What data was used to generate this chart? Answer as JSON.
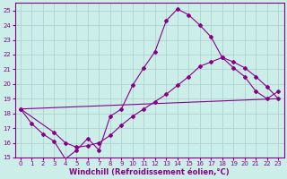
{
  "xlabel": "Windchill (Refroidissement éolien,°C)",
  "background_color": "#cceee8",
  "grid_color": "#aacccc",
  "line_color": "#880088",
  "spine_color": "#880088",
  "ylim": [
    15,
    25.5
  ],
  "xlim": [
    -0.5,
    23.5
  ],
  "yticks": [
    15,
    16,
    17,
    18,
    19,
    20,
    21,
    22,
    23,
    24,
    25
  ],
  "xticks": [
    0,
    1,
    2,
    3,
    4,
    5,
    6,
    7,
    8,
    9,
    10,
    11,
    12,
    13,
    14,
    15,
    16,
    17,
    18,
    19,
    20,
    21,
    22,
    23
  ],
  "line1_x": [
    0,
    1,
    2,
    3,
    4,
    5,
    6,
    7,
    8,
    9,
    10,
    11,
    12,
    13,
    14,
    15,
    16,
    17,
    18,
    19,
    20,
    21,
    22,
    23
  ],
  "line1_y": [
    18.3,
    17.3,
    16.6,
    16.1,
    14.9,
    15.5,
    16.3,
    15.5,
    17.8,
    18.3,
    19.9,
    21.1,
    22.2,
    24.3,
    25.1,
    24.7,
    24.0,
    23.2,
    21.8,
    21.1,
    20.5,
    19.5,
    19.0,
    19.5
  ],
  "line2_x": [
    0,
    23
  ],
  "line2_y": [
    18.3,
    19.0
  ],
  "line3_x": [
    0,
    3,
    4,
    5,
    6,
    7,
    8,
    9,
    10,
    11,
    12,
    13,
    14,
    15,
    16,
    17,
    18,
    19,
    20,
    21,
    22,
    23
  ],
  "line3_y": [
    18.3,
    16.7,
    16.0,
    15.7,
    15.8,
    16.0,
    16.5,
    17.2,
    17.8,
    18.3,
    18.8,
    19.3,
    19.9,
    20.5,
    21.2,
    21.5,
    21.8,
    21.5,
    21.1,
    20.5,
    19.8,
    19.0
  ],
  "tick_labelsize": 5,
  "xlabel_fontsize": 6,
  "marker": "D",
  "markersize": 2.0
}
